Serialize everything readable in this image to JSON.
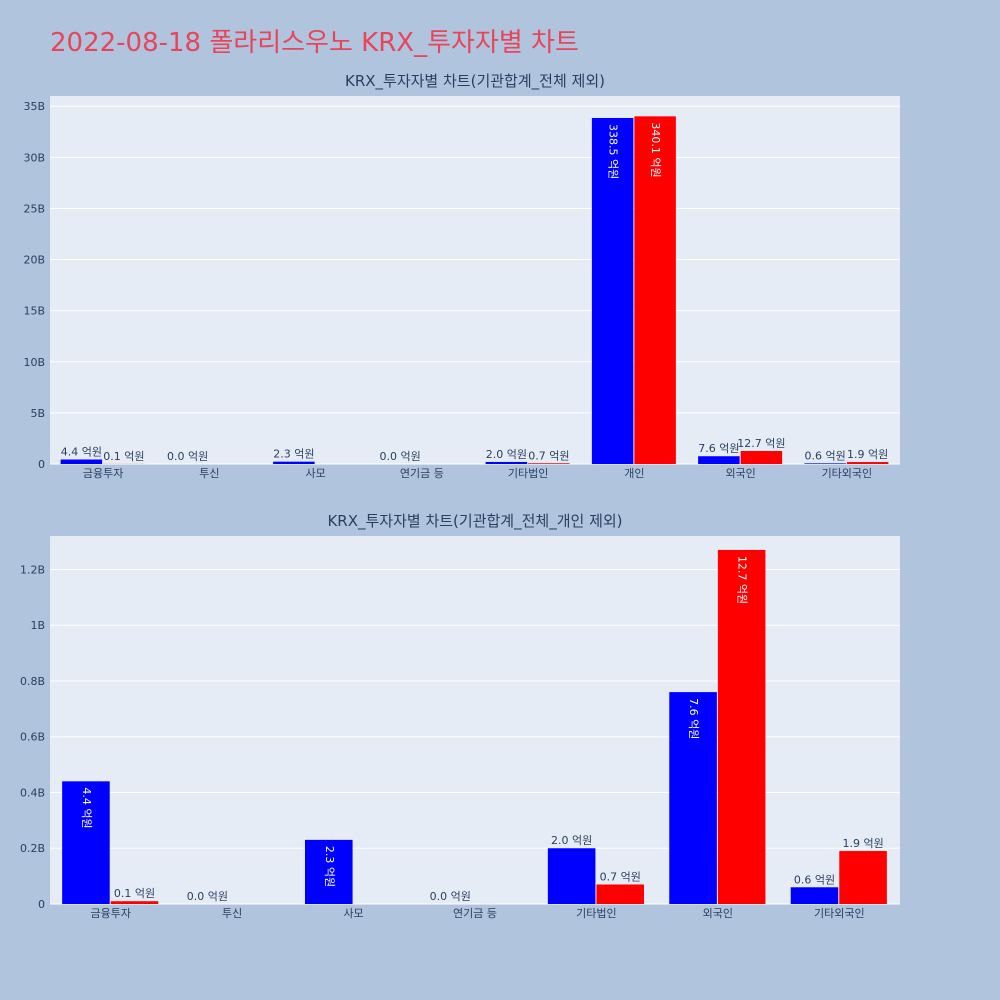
{
  "page": {
    "title": "2022-08-18 폴라리스우노 KRX_투자자별 차트",
    "title_color": "#e8455a",
    "background": "#b0c4de",
    "plot_background": "#e5ecf6",
    "series_colors": [
      "#0000ff",
      "#ff0000"
    ]
  },
  "chart_data": [
    {
      "type": "bar",
      "title": "KRX_투자자별 차트(기관합계_전체 제외)",
      "categories": [
        "금융투자",
        "투신",
        "사모",
        "연기금 등",
        "기타법인",
        "개인",
        "외국인",
        "기타외국인"
      ],
      "series": [
        {
          "color": "#0000ff",
          "values": [
            440000000,
            0,
            230000000,
            0,
            200000000,
            33850000000,
            760000000,
            60000000
          ],
          "labels": [
            "4.4 억원",
            "0.0 억원",
            "2.3 억원",
            "0.0 억원",
            "2.0 억원",
            "338.5 억원",
            "7.6 억원",
            "0.6 억원"
          ]
        },
        {
          "color": "#ff0000",
          "values": [
            10000000,
            0,
            0,
            0,
            70000000,
            34010000000,
            1270000000,
            190000000
          ],
          "labels": [
            "0.1 억원",
            "",
            "",
            "",
            "0.7 억원",
            "340.1 억원",
            "12.7 억원",
            "1.9 억원"
          ]
        }
      ],
      "ylim": [
        0,
        36000000000
      ],
      "yticks": [
        0,
        5000000000,
        10000000000,
        15000000000,
        20000000000,
        25000000000,
        30000000000,
        35000000000
      ],
      "ytick_labels": [
        "0",
        "5B",
        "10B",
        "15B",
        "20B",
        "25B",
        "30B",
        "35B"
      ],
      "grid": true,
      "xlabel": "",
      "ylabel": ""
    },
    {
      "type": "bar",
      "title": "KRX_투자자별 차트(기관합계_전체_개인 제외)",
      "categories": [
        "금융투자",
        "투신",
        "사모",
        "연기금 등",
        "기타법인",
        "외국인",
        "기타외국인"
      ],
      "series": [
        {
          "color": "#0000ff",
          "values": [
            440000000,
            0,
            230000000,
            0,
            200000000,
            760000000,
            60000000
          ],
          "labels": [
            "4.4 억원",
            "0.0 억원",
            "2.3 억원",
            "0.0 억원",
            "2.0 억원",
            "7.6 억원",
            "0.6 억원"
          ]
        },
        {
          "color": "#ff0000",
          "values": [
            10000000,
            0,
            0,
            0,
            70000000,
            1270000000,
            190000000
          ],
          "labels": [
            "0.1 억원",
            "",
            "",
            "",
            "0.7 억원",
            "12.7 억원",
            "1.9 억원"
          ]
        }
      ],
      "ylim": [
        0,
        1320000000
      ],
      "yticks": [
        0,
        200000000,
        400000000,
        600000000,
        800000000,
        1000000000,
        1200000000
      ],
      "ytick_labels": [
        "0",
        "0.2B",
        "0.4B",
        "0.6B",
        "0.8B",
        "1B",
        "1.2B"
      ],
      "grid": true,
      "xlabel": "",
      "ylabel": ""
    }
  ]
}
